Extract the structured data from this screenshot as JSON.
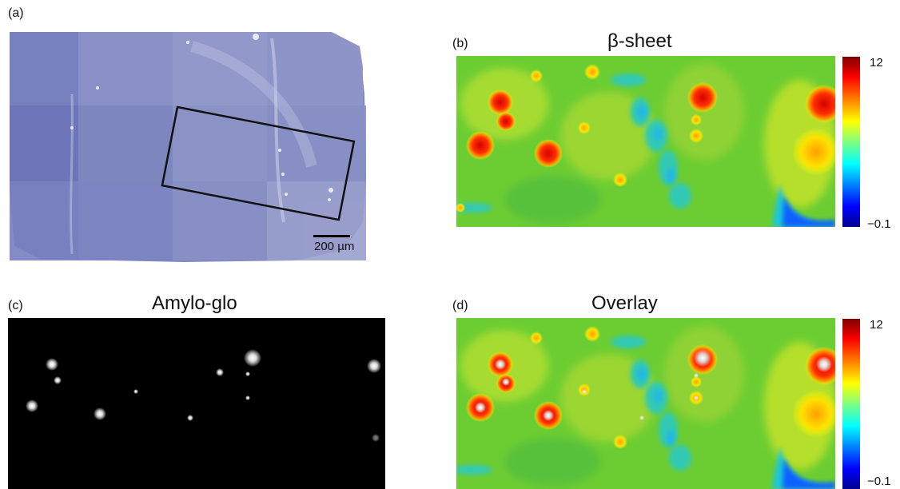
{
  "panels": {
    "a": {
      "label": "(a)",
      "scalebar": "200 µm"
    },
    "b": {
      "label": "(b)",
      "title": "β-sheet",
      "cbar_max": "12",
      "cbar_min": "−0.1"
    },
    "c": {
      "label": "(c)",
      "title": "Amylo-glo"
    },
    "d": {
      "label": "(d)",
      "title": "Overlay",
      "cbar_max": "12",
      "cbar_min": "−0.1"
    }
  },
  "colors": {
    "tissue_stain": "#7f86c0",
    "fluorescence_background": "#000000",
    "colormap": [
      "#00008f",
      "#0000ff",
      "#00ffff",
      "#7fff7f",
      "#ffff00",
      "#ff7f00",
      "#ff0000",
      "#800000"
    ]
  }
}
